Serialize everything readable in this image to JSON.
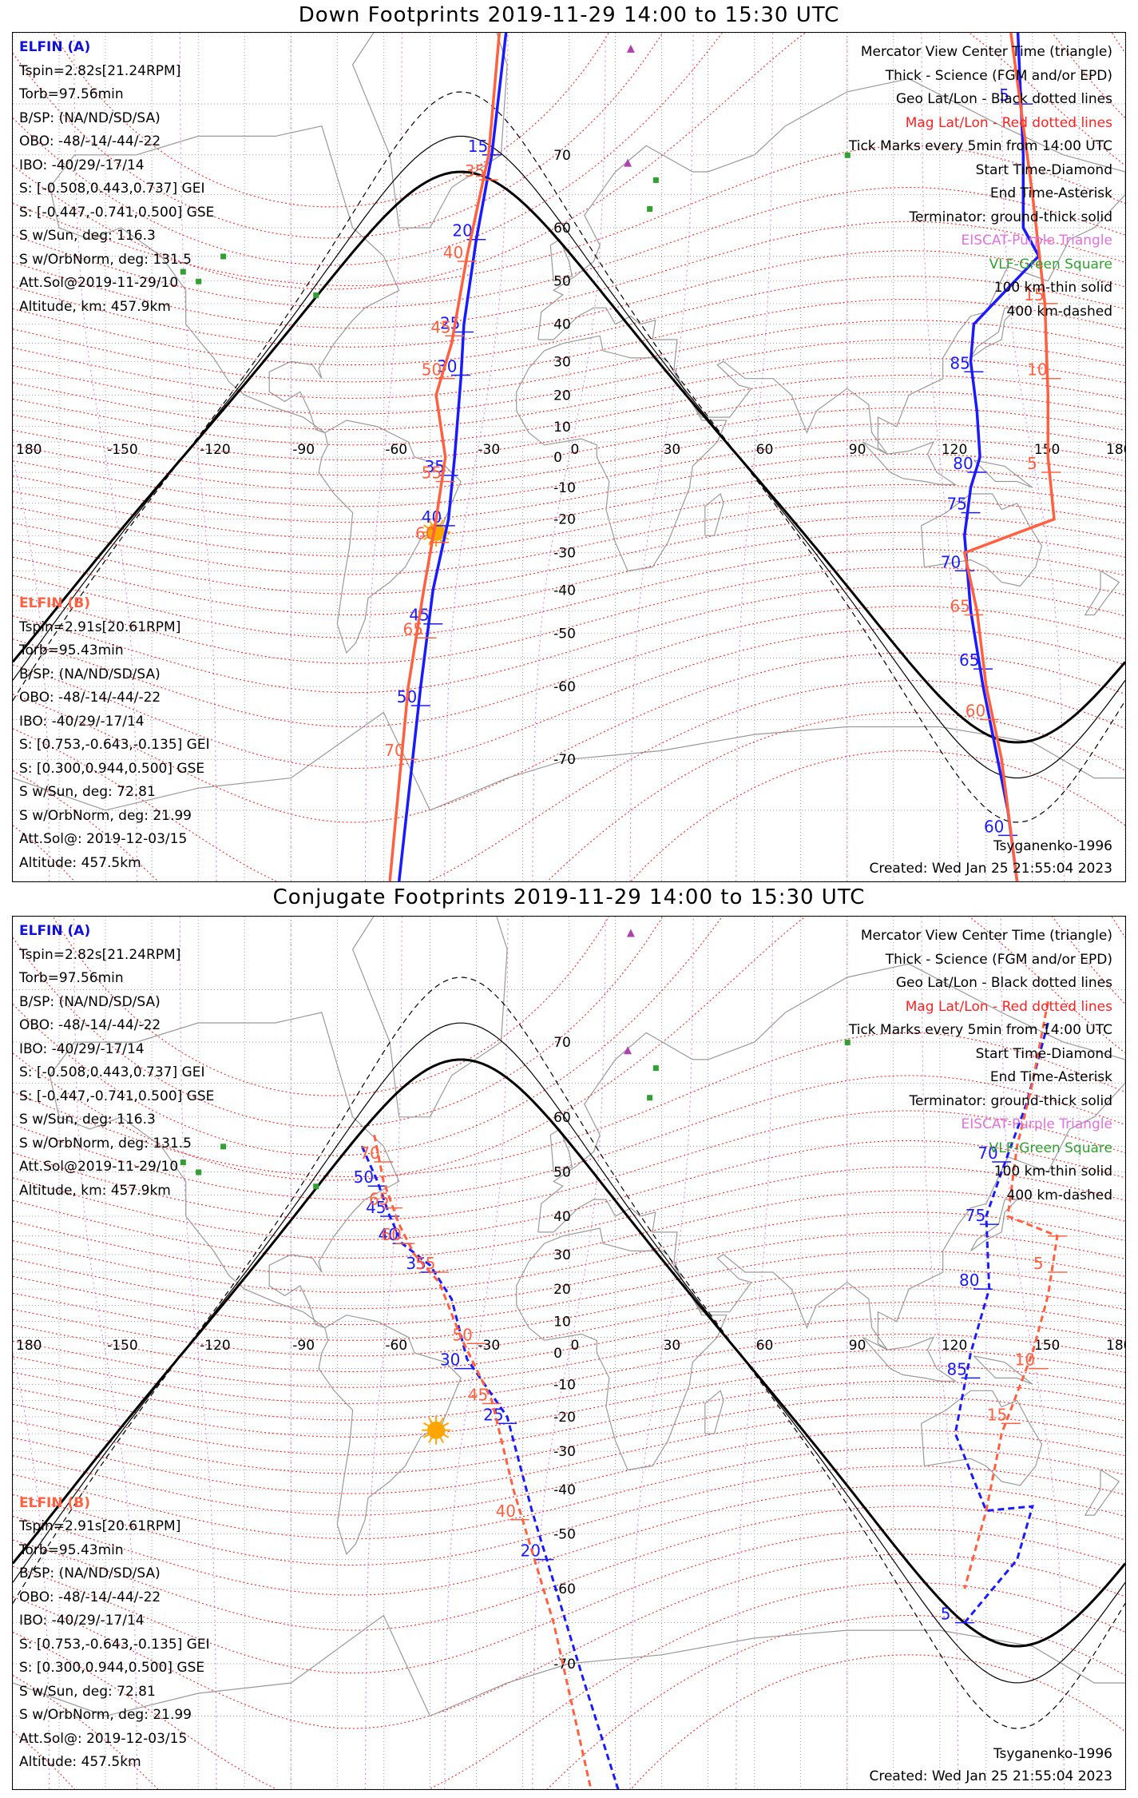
{
  "panels": [
    {
      "title": "Down Footprints 2019-11-29 14:00 to 15:30 UTC",
      "sc_a": {
        "name": "ELFIN (A)",
        "lines": [
          "Tspin=2.82s[21.24RPM]",
          "Torb=97.56min",
          "B/SP: (NA/ND/SD/SA)",
          "OBO: -48/-14/-44/-22",
          "IBO: -40/29/-17/14",
          "S: [-0.508,0.443,0.737] GEI",
          "S: [-0.447,-0.741,0.500] GSE",
          "S w/Sun, deg: 116.3",
          "S w/OrbNorm, deg: 131.5",
          "Att.Sol@2019-11-29/10",
          "Altitude, km: 457.9km"
        ]
      },
      "sc_b": {
        "name": "ELFIN (B)",
        "lines": [
          "Tspin=2.91s[20.61RPM]",
          "Torb=95.43min",
          "B/SP: (NA/ND/SD/SA)",
          "OBO: -48/-14/-44/-22",
          "IBO: -40/29/-17/14",
          "S: [0.753,-0.643,-0.135] GEI",
          "S: [0.300,0.944,0.500] GSE",
          "S w/Sun, deg: 72.81",
          "S w/OrbNorm, deg: 21.99",
          "Att.Sol@: 2019-12-03/15",
          "Altitude: 457.5km"
        ]
      },
      "legend": [
        "Mercator View Center Time (triangle)",
        "Thick - Science (FGM and/or EPD)",
        "Geo Lat/Lon - Black dotted lines",
        "Mag Lat/Lon - Red dotted lines",
        "Tick Marks every 5min from 14:00 UTC",
        "Start Time-Diamond",
        "End Time-Asterisk",
        "Terminator: ground-thick solid",
        "EISCAT-Purple Triangle",
        "VLF-Green Square",
        "100 km-thin solid",
        "400 km-dashed"
      ],
      "model": "Tsyganenko-1996",
      "created": "Created: Wed Jan 25 21:55:04 2023",
      "lon_labels": [
        "180",
        "-150",
        "-120",
        "-90",
        "-60",
        "-30",
        "0",
        "30",
        "60",
        "90",
        "120",
        "150",
        "180"
      ],
      "lat_labels": [
        "70",
        "60",
        "50",
        "40",
        "30",
        "20",
        "10",
        "0",
        "-10",
        "-20",
        "-30",
        "-40",
        "-50",
        "-60",
        "-70"
      ],
      "traces": {
        "a_west": {
          "style": "solid",
          "color": "#1a1aff",
          "points": [
            [
              -17,
              87
            ],
            [
              -25,
              70
            ],
            [
              -30,
              58
            ],
            [
              -34,
              40
            ],
            [
              -35,
              25
            ],
            [
              -37,
              0
            ],
            [
              -39,
              -20
            ],
            [
              -44,
              -40
            ],
            [
              -48,
              -60
            ],
            [
              -55,
              -80
            ]
          ],
          "ticks": [
            {
              "lon": -25,
              "lat": 70,
              "label": "15"
            },
            {
              "lon": -30,
              "lat": 58,
              "label": "20"
            },
            {
              "lon": -34,
              "lat": 38,
              "label": "25"
            },
            {
              "lon": -35,
              "lat": 26,
              "label": "30"
            },
            {
              "lon": -39,
              "lat": -6,
              "label": "35"
            },
            {
              "lon": -40,
              "lat": -22,
              "label": "40"
            },
            {
              "lon": -44,
              "lat": -48,
              "label": "45"
            },
            {
              "lon": -48,
              "lat": -63,
              "label": "50"
            }
          ]
        },
        "b_west": {
          "style": "solid",
          "color": "#ff6040",
          "points": [
            [
              -20,
              87
            ],
            [
              -26,
              70
            ],
            [
              -33,
              55
            ],
            [
              -38,
              35
            ],
            [
              -43,
              20
            ],
            [
              -40,
              0
            ],
            [
              -43,
              -20
            ],
            [
              -47,
              -40
            ],
            [
              -52,
              -60
            ],
            [
              -58,
              -80
            ]
          ],
          "ticks": [
            {
              "lon": -26,
              "lat": 67,
              "label": "35"
            },
            {
              "lon": -33,
              "lat": 54,
              "label": "40"
            },
            {
              "lon": -37,
              "lat": 37,
              "label": "45"
            },
            {
              "lon": -40,
              "lat": 25,
              "label": "50"
            },
            {
              "lon": -40,
              "lat": -8,
              "label": "55"
            },
            {
              "lon": -42,
              "lat": -27,
              "label": "60"
            },
            {
              "lon": -46,
              "lat": -51,
              "label": "65"
            },
            {
              "lon": -52,
              "lat": -70,
              "label": "70"
            }
          ]
        },
        "a_east": {
          "style": "solid",
          "color": "#1a1aff",
          "points": [
            [
              144,
              85
            ],
            [
              147,
              70
            ],
            [
              147,
              60
            ],
            [
              152,
              55
            ],
            [
              131,
              40
            ],
            [
              130,
              30
            ],
            [
              132,
              15
            ],
            [
              133,
              0
            ],
            [
              130,
              -10
            ],
            [
              128,
              -25
            ],
            [
              130,
              -45
            ],
            [
              134,
              -60
            ],
            [
              142,
              -75
            ],
            [
              145,
              -80
            ]
          ],
          "ticks": [
            {
              "lon": 147,
              "lat": 75,
              "label": "5"
            },
            {
              "lon": 131,
              "lat": 27,
              "label": "85"
            },
            {
              "lon": 132,
              "lat": -5,
              "label": "80"
            },
            {
              "lon": 130,
              "lat": -18,
              "label": "75"
            },
            {
              "lon": 128,
              "lat": -35,
              "label": "70"
            },
            {
              "lon": 134,
              "lat": -57,
              "label": "65"
            },
            {
              "lon": 142,
              "lat": -77,
              "label": "60"
            }
          ]
        },
        "b_east": {
          "style": "solid",
          "color": "#ff6040",
          "points": [
            [
              143,
              80
            ],
            [
              150,
              65
            ],
            [
              154,
              45
            ],
            [
              155,
              20
            ],
            [
              155,
              0
            ],
            [
              157,
              -20
            ],
            [
              128,
              -30
            ],
            [
              132,
              -45
            ],
            [
              135,
              -60
            ],
            [
              140,
              -70
            ],
            [
              145,
              -80
            ]
          ],
          "ticks": [
            {
              "lon": 155,
              "lat": 45,
              "label": "15"
            },
            {
              "lon": 156,
              "lat": 25,
              "label": "10"
            },
            {
              "lon": 156,
              "lat": -5,
              "label": "5"
            },
            {
              "lon": 131,
              "lat": -46,
              "label": "65"
            },
            {
              "lon": 136,
              "lat": -65,
              "label": "60"
            }
          ]
        }
      }
    },
    {
      "title": "Conjugate Footprints 2019-11-29 14:00 to 15:30 UTC",
      "sc_a": {
        "name": "ELFIN (A)",
        "lines": [
          "Tspin=2.82s[21.24RPM]",
          "Torb=97.56min",
          "B/SP: (NA/ND/SD/SA)",
          "OBO: -48/-14/-44/-22",
          "IBO: -40/29/-17/14",
          "S: [-0.508,0.443,0.737] GEI",
          "S: [-0.447,-0.741,0.500] GSE",
          "S w/Sun, deg: 116.3",
          "S w/OrbNorm, deg: 131.5",
          "Att.Sol@2019-11-29/10",
          "Altitude, km: 457.9km"
        ]
      },
      "sc_b": {
        "name": "ELFIN (B)",
        "lines": [
          "Tspin=2.91s[20.61RPM]",
          "Torb=95.43min",
          "B/SP: (NA/ND/SD/SA)",
          "OBO: -48/-14/-44/-22",
          "IBO: -40/29/-17/14",
          "S: [0.753,-0.643,-0.135] GEI",
          "S: [0.300,0.944,0.500] GSE",
          "S w/Sun, deg: 72.81",
          "S w/OrbNorm, deg: 21.99",
          "Att.Sol@: 2019-12-03/15",
          "Altitude: 457.5km"
        ]
      },
      "legend": [
        "Mercator View Center Time (triangle)",
        "Thick - Science (FGM and/or EPD)",
        "Geo Lat/Lon - Black dotted lines",
        "Mag Lat/Lon - Red dotted lines",
        "Tick Marks every 5min from 14:00 UTC",
        "Start Time-Diamond",
        "End Time-Asterisk",
        "Terminator: ground-thick solid",
        "EISCAT-Purple Triangle",
        "VLF-Green Square",
        "100 km-thin solid",
        "400 km-dashed"
      ],
      "model": "Tsyganenko-1996",
      "created": "Created: Wed Jan 25 21:55:04 2023",
      "lon_labels": [
        "180",
        "-150",
        "-120",
        "-90",
        "-60",
        "-30",
        "0",
        "30",
        "60",
        "90",
        "120",
        "150",
        "180"
      ],
      "lat_labels": [
        "70",
        "60",
        "50",
        "40",
        "30",
        "20",
        "10",
        "0",
        "-10",
        "-20",
        "-30",
        "-40",
        "-50",
        "-60",
        "-70"
      ],
      "traces": {
        "a_west": {
          "style": "dashed",
          "color": "#1a1aff",
          "points": [
            [
              -67,
              55
            ],
            [
              -62,
              48
            ],
            [
              -58,
              40
            ],
            [
              -54,
              33
            ],
            [
              -45,
              27
            ],
            [
              -38,
              17
            ],
            [
              -33,
              -2
            ],
            [
              -20,
              -20
            ],
            [
              -12,
              -45
            ],
            [
              5,
              -72
            ],
            [
              20,
              -82
            ]
          ],
          "ticks": [
            {
              "lon": -62,
              "lat": 47,
              "label": "50"
            },
            {
              "lon": -58,
              "lat": 40,
              "label": "45"
            },
            {
              "lon": -54,
              "lat": 33,
              "label": "40"
            },
            {
              "lon": -45,
              "lat": 25,
              "label": "35"
            },
            {
              "lon": -34,
              "lat": -5,
              "label": "30"
            },
            {
              "lon": -20,
              "lat": -22,
              "label": "25"
            },
            {
              "lon": -8,
              "lat": -55,
              "label": "20"
            }
          ]
        },
        "b_west": {
          "style": "dashed",
          "color": "#ff6040",
          "points": [
            [
              -63,
              57
            ],
            [
              -60,
              48
            ],
            [
              -55,
              38
            ],
            [
              -50,
              30
            ],
            [
              -42,
              22
            ],
            [
              -35,
              5
            ],
            [
              -25,
              -15
            ],
            [
              -18,
              -40
            ],
            [
              -5,
              -65
            ],
            [
              10,
              -82
            ]
          ],
          "ticks": [
            {
              "lon": -60,
              "lat": 52,
              "label": "70"
            },
            {
              "lon": -57,
              "lat": 42,
              "label": "65"
            },
            {
              "lon": -53,
              "lat": 33,
              "label": "60"
            },
            {
              "lon": -42,
              "lat": 25,
              "label": "55"
            },
            {
              "lon": -30,
              "lat": 3,
              "label": "50"
            },
            {
              "lon": -25,
              "lat": -16,
              "label": "45"
            },
            {
              "lon": -16,
              "lat": -47,
              "label": "40"
            }
          ]
        },
        "a_east": {
          "style": "dashed",
          "color": "#1a1aff",
          "points": [
            [
              155,
              72
            ],
            [
              148,
              62
            ],
            [
              140,
              50
            ],
            [
              135,
              40
            ],
            [
              136,
              20
            ],
            [
              130,
              0
            ],
            [
              125,
              -25
            ],
            [
              135,
              -45
            ],
            [
              150,
              -44
            ],
            [
              145,
              -55
            ],
            [
              128,
              -65
            ]
          ],
          "ticks": [
            {
              "lon": 140,
              "lat": 52,
              "label": "70"
            },
            {
              "lon": 136,
              "lat": 38,
              "label": "75"
            },
            {
              "lon": 134,
              "lat": 20,
              "label": "80"
            },
            {
              "lon": 130,
              "lat": -8,
              "label": "85"
            },
            {
              "lon": 128,
              "lat": -65,
              "label": "5"
            }
          ]
        },
        "b_east": {
          "style": "dashed",
          "color": "#ff6040",
          "points": [
            [
              155,
              74
            ],
            [
              150,
              65
            ],
            [
              145,
              55
            ],
            [
              142,
              40
            ],
            [
              158,
              35
            ],
            [
              155,
              18
            ],
            [
              150,
              0
            ],
            [
              140,
              -25
            ],
            [
              135,
              -45
            ],
            [
              128,
              -60
            ]
          ],
          "ticks": [
            {
              "lon": 158,
              "lat": 35,
              "label": ""
            },
            {
              "lon": 158,
              "lat": 25,
              "label": "5"
            },
            {
              "lon": 152,
              "lat": -5,
              "label": "10"
            },
            {
              "lon": 143,
              "lat": -22,
              "label": "15"
            }
          ]
        }
      }
    }
  ],
  "colors": {
    "sc_a": "#1a1aff",
    "sc_b": "#ff6040",
    "mag_grid": "#ff2020",
    "geo_grid": "#000000",
    "eiscat": "#b040b0",
    "vlf": "#30a030",
    "sun": "#ffa500"
  }
}
